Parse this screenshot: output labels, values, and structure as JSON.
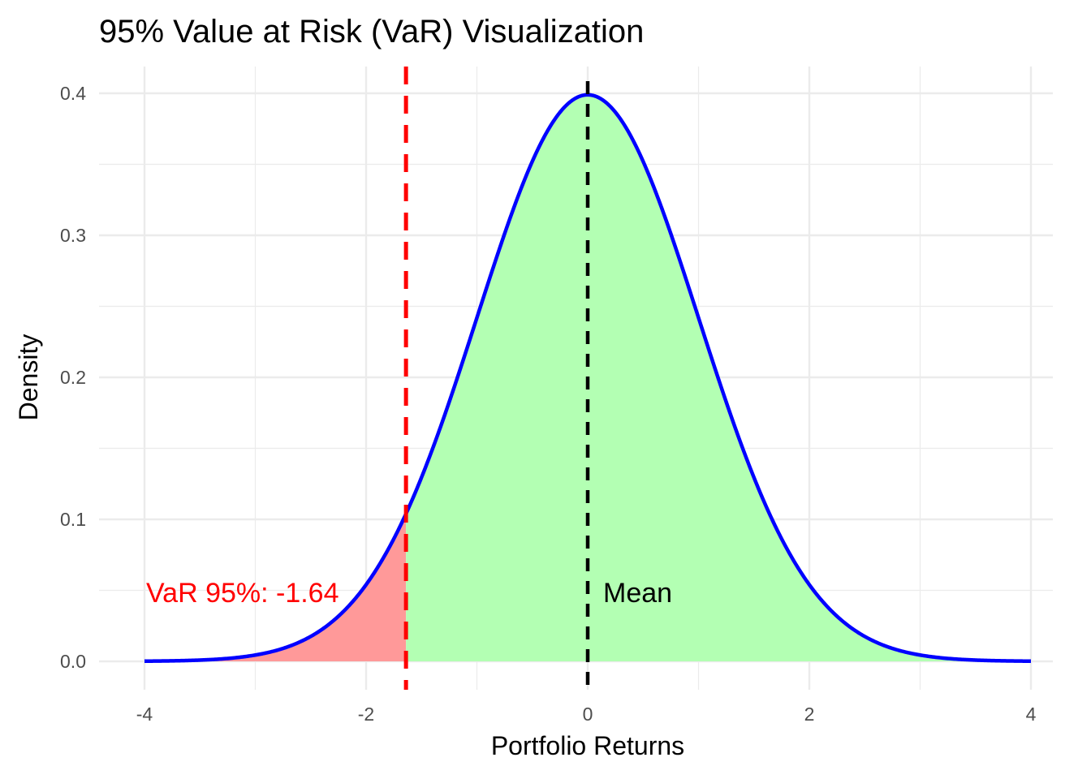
{
  "chart_data": {
    "type": "area",
    "title": "95% Value at Risk (VaR) Visualization",
    "xlabel": "Portfolio Returns",
    "ylabel": "Density",
    "xlim": [
      -4,
      4
    ],
    "ylim": [
      0,
      0.4
    ],
    "x_ticks": [
      "-4",
      "-2",
      "0",
      "2",
      "4"
    ],
    "y_ticks": [
      "0.0",
      "0.1",
      "0.2",
      "0.3",
      "0.4"
    ],
    "grid": true,
    "distribution": {
      "name": "normal",
      "mean": 0,
      "sd": 1
    },
    "var_level": -1.64,
    "mean_value": 0,
    "annotations": {
      "var_label": "VaR 95%: -1.64",
      "mean_label": "Mean"
    },
    "colors": {
      "curve": "#0000ff",
      "tail_fill": "#ff9999",
      "body_fill": "#b3ffb3",
      "var_line": "#ff0000",
      "mean_line": "#000000",
      "var_label": "#ff0000",
      "grid": "#ebebeb"
    }
  }
}
